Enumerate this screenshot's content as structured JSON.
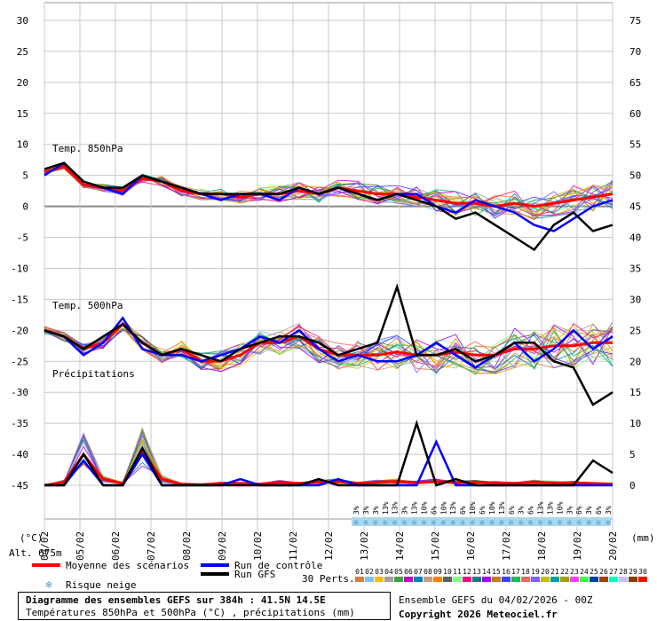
{
  "chart_data": {
    "type": "line",
    "panel_labels": {
      "t850": "Temp. 850hPa",
      "t500": "Temp. 500hPa",
      "precip": "Précipitations"
    },
    "left_axis": {
      "label": "(°C)",
      "ticks": [
        30,
        25,
        20,
        15,
        10,
        5,
        0,
        -5,
        -10,
        -15,
        -20,
        -25,
        -30,
        -35,
        -40,
        -45
      ],
      "range": [
        -45,
        30
      ]
    },
    "right_axis": {
      "label": "(mm)",
      "ticks": [
        75,
        70,
        65,
        60,
        55,
        50,
        45,
        40,
        35,
        30,
        25,
        20,
        15,
        10,
        5,
        0
      ],
      "range": [
        0,
        75
      ]
    },
    "altitude_label": "Alt. 675m",
    "x_dates": [
      "04/02",
      "05/02",
      "06/02",
      "07/02",
      "08/02",
      "09/02",
      "10/02",
      "11/02",
      "12/02",
      "13/02",
      "14/02",
      "15/02",
      "16/02",
      "17/02",
      "18/02",
      "19/02",
      "20/02"
    ],
    "snow_risk_percent": [
      "3%",
      "3%",
      "3%",
      "13%",
      "13%",
      "3%",
      "13%",
      "10%",
      "6%",
      "10%",
      "13%",
      "6%",
      "10%",
      "6%",
      "10%",
      "13%",
      "6%",
      "3%",
      "6%",
      "13%",
      "13%",
      "10%",
      "3%",
      "6%",
      "3%",
      "6%",
      "3%"
    ],
    "legend": {
      "mean": "Moyenne des scénarios",
      "control": "Run de contrôle",
      "gfs": "Run GFS",
      "snow": "Risque neige",
      "perts_label": "30 Perts.",
      "pert_ids": [
        "01",
        "02",
        "03",
        "04",
        "05",
        "06",
        "07",
        "08",
        "09",
        "10",
        "11",
        "12",
        "13",
        "14",
        "15",
        "16",
        "17",
        "18",
        "19",
        "20",
        "21",
        "22",
        "23",
        "24",
        "25",
        "26",
        "27",
        "28",
        "29",
        "30"
      ]
    },
    "series": [
      {
        "name": "Moyenne des scénarios",
        "t850": [
          5.5,
          6.5,
          3.5,
          3,
          2.5,
          4.5,
          4,
          2.5,
          2,
          2,
          1.5,
          2,
          2,
          2.5,
          2,
          3,
          2.5,
          2,
          2,
          1.5,
          1,
          0.5,
          0.5,
          0,
          0.5,
          0,
          0.5,
          1,
          1.5,
          2
        ],
        "t500": [
          -20,
          -21,
          -23,
          -22,
          -19,
          -22,
          -24,
          -23,
          -25,
          -25,
          -24,
          -22,
          -22,
          -21,
          -23,
          -24,
          -24,
          -24,
          -23.5,
          -24,
          -24,
          -23.5,
          -24,
          -24,
          -23,
          -23,
          -22.5,
          -22.5,
          -22,
          -22
        ],
        "precip": [
          0,
          0.5,
          5,
          1,
          0.3,
          5.5,
          1,
          0.2,
          0.1,
          0.3,
          0.3,
          0.2,
          0.5,
          0.3,
          0.5,
          0.6,
          0.3,
          0.5,
          0.6,
          0.4,
          0.6,
          0.4,
          0.5,
          0.4,
          0.3,
          0.5,
          0.4,
          0.4,
          0.3,
          0.2
        ]
      },
      {
        "name": "Run de contrôle",
        "t850": [
          5,
          7,
          4,
          3,
          2,
          5,
          4,
          3,
          2,
          1,
          2,
          2,
          1,
          3,
          2,
          3,
          2,
          1,
          2,
          2,
          0,
          -1,
          1,
          0,
          -1,
          -3,
          -4,
          -2,
          0,
          1
        ],
        "t500": [
          -20,
          -21,
          -24,
          -22,
          -18,
          -23,
          -24,
          -24,
          -25,
          -24,
          -23,
          -21,
          -22,
          -20,
          -23,
          -25,
          -24,
          -25,
          -25,
          -24,
          -22,
          -24,
          -26,
          -24,
          -22,
          -25,
          -23,
          -20,
          -23,
          -21
        ],
        "precip": [
          0,
          0,
          4,
          0,
          0,
          5,
          0,
          0,
          0,
          0,
          1,
          0,
          0,
          0,
          0,
          1,
          0,
          0,
          0,
          0,
          7,
          0,
          0,
          0,
          0,
          0,
          0,
          0,
          0,
          0
        ]
      },
      {
        "name": "Run GFS",
        "t850": [
          6,
          7,
          4,
          3,
          3,
          5,
          4,
          3,
          2,
          2,
          2,
          2,
          2,
          3,
          2,
          3,
          2,
          1,
          2,
          1,
          0,
          -2,
          -1,
          -3,
          -5,
          -7,
          -3,
          -1,
          -4,
          -3
        ],
        "t500": [
          -20,
          -21,
          -23,
          -21,
          -19,
          -22,
          -24,
          -23,
          -24,
          -25,
          -23,
          -22,
          -21,
          -21,
          -22,
          -24,
          -23,
          -22,
          -13,
          -24,
          -24,
          -23,
          -25,
          -24,
          -22,
          -22,
          -25,
          -26,
          -32,
          -30
        ],
        "precip": [
          0,
          0,
          5,
          0,
          0,
          6,
          0,
          0,
          0,
          0,
          0,
          0,
          0,
          0,
          1,
          0,
          0,
          0,
          0,
          10,
          0,
          1,
          0,
          0,
          0,
          0,
          0,
          0,
          4,
          2
        ]
      }
    ]
  },
  "footer": {
    "title": "Diagramme des ensembles GEFS sur 384h : 41.5N 14.5E",
    "subtitle": "Températures 850hPa et 500hPa (°C) , précipitations (mm)",
    "run_info": "Ensemble GEFS du 04/02/2026 - 00Z",
    "copyright": "Copyright 2026 Meteociel.fr"
  },
  "colors": {
    "mean": "#ff0000",
    "control": "#0000ff",
    "gfs": "#000000",
    "grid": "#c8c8c8",
    "snow_box": "#a8d8f0"
  }
}
